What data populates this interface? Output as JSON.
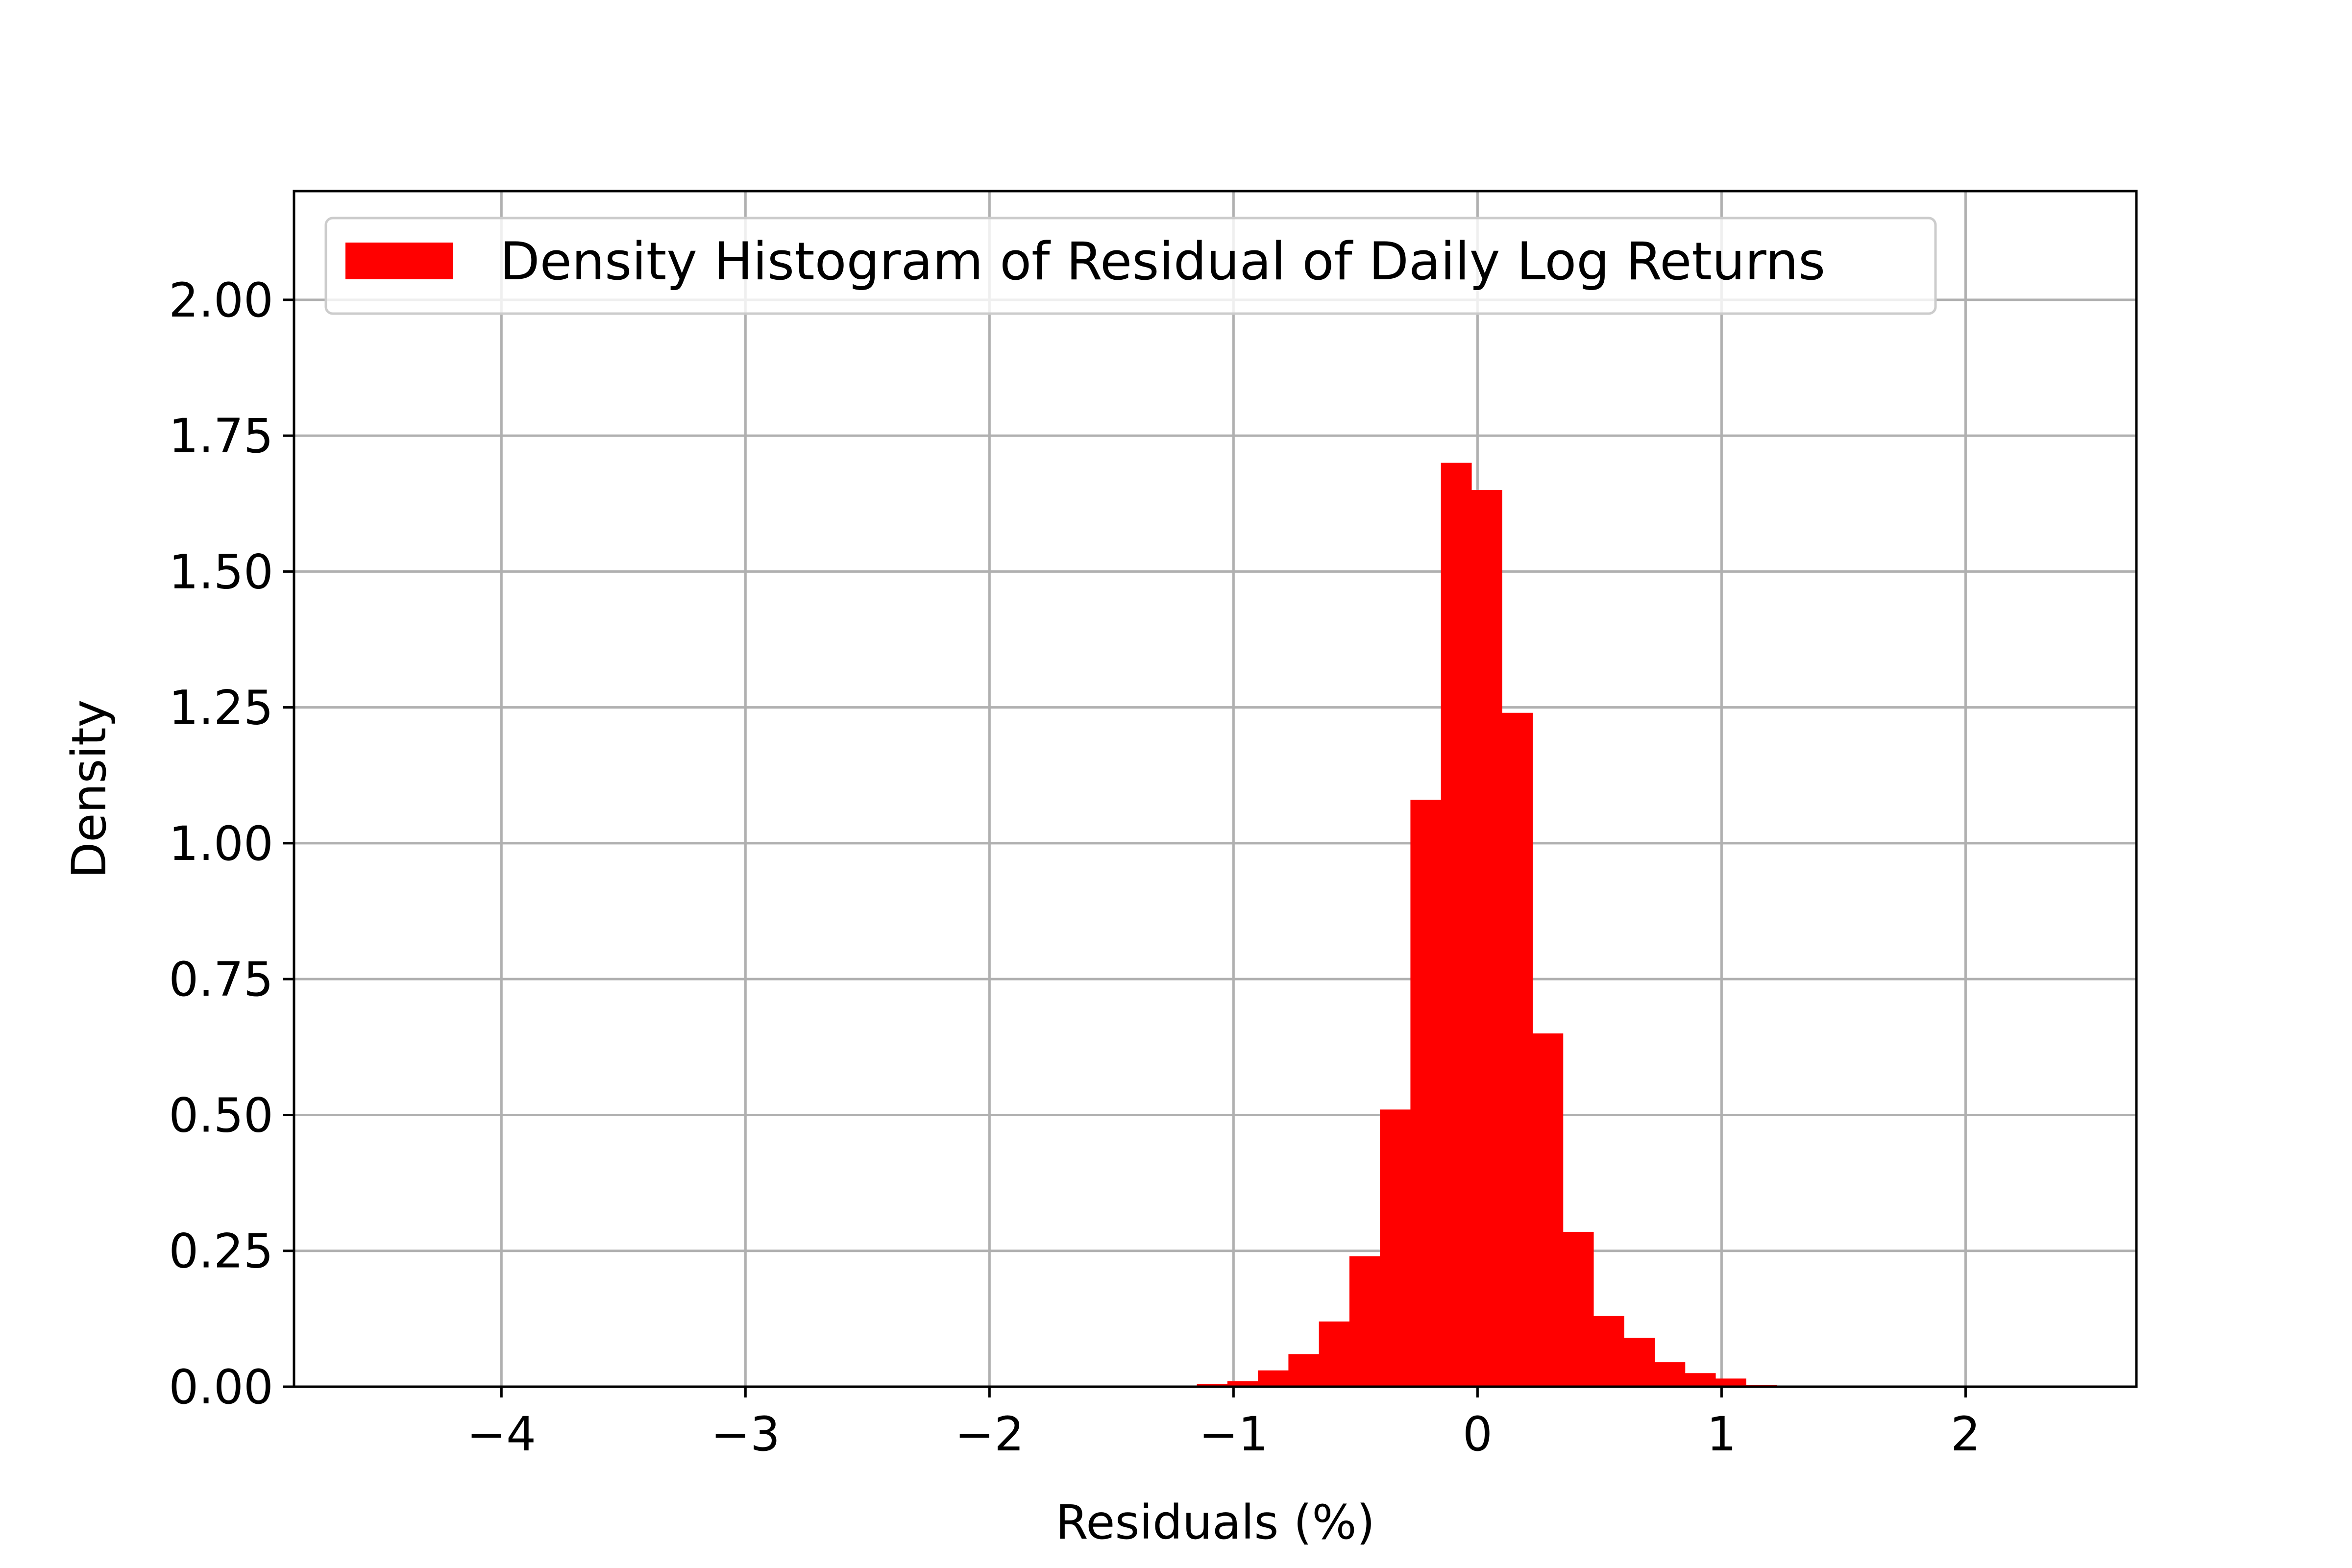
{
  "chart_data": {
    "type": "bar",
    "xlabel": "Residuals (%)",
    "ylabel": "Density",
    "xlim": [
      -4.85,
      2.7
    ],
    "ylim": [
      0,
      2.2
    ],
    "grid": true,
    "legend_position": "top-left",
    "xticks": [
      {
        "value": -4,
        "label": "−4"
      },
      {
        "value": -3,
        "label": "−3"
      },
      {
        "value": -2,
        "label": "−2"
      },
      {
        "value": -1,
        "label": "−1"
      },
      {
        "value": 0,
        "label": "0"
      },
      {
        "value": 1,
        "label": "1"
      },
      {
        "value": 2,
        "label": "2"
      }
    ],
    "yticks": [
      {
        "value": 0,
        "label": "0.00"
      },
      {
        "value": 0.25,
        "label": "0.25"
      },
      {
        "value": 0.5,
        "label": "0.50"
      },
      {
        "value": 0.75,
        "label": "0.75"
      },
      {
        "value": 1.0,
        "label": "1.00"
      },
      {
        "value": 1.25,
        "label": "1.25"
      },
      {
        "value": 1.5,
        "label": "1.50"
      },
      {
        "value": 1.75,
        "label": "1.75"
      },
      {
        "value": 2.0,
        "label": "2.00"
      }
    ],
    "series": [
      {
        "name": "Density Histogram of Residual of Daily Log Returns",
        "color": "#ff0000",
        "bin_width": 0.125,
        "bins": [
          {
            "x0": -1.15,
            "value": 0.005
          },
          {
            "x0": -1.025,
            "value": 0.01
          },
          {
            "x0": -0.9,
            "value": 0.03
          },
          {
            "x0": -0.775,
            "value": 0.06
          },
          {
            "x0": -0.65,
            "value": 0.12
          },
          {
            "x0": -0.525,
            "value": 0.24
          },
          {
            "x0": -0.4,
            "value": 0.51
          },
          {
            "x0": -0.275,
            "value": 1.08
          },
          {
            "x0": -0.15,
            "value": 1.7
          },
          {
            "x0": -0.025,
            "value": 1.65
          },
          {
            "x0": 0.1,
            "value": 1.24
          },
          {
            "x0": 0.225,
            "value": 0.65
          },
          {
            "x0": 0.35,
            "value": 0.285
          },
          {
            "x0": 0.475,
            "value": 0.13
          },
          {
            "x0": 0.6,
            "value": 0.09
          },
          {
            "x0": 0.725,
            "value": 0.045
          },
          {
            "x0": 0.85,
            "value": 0.025
          },
          {
            "x0": 0.975,
            "value": 0.015
          },
          {
            "x0": 1.1,
            "value": 0.003
          },
          {
            "x0": 1.225,
            "value": 0.002
          }
        ]
      }
    ]
  }
}
